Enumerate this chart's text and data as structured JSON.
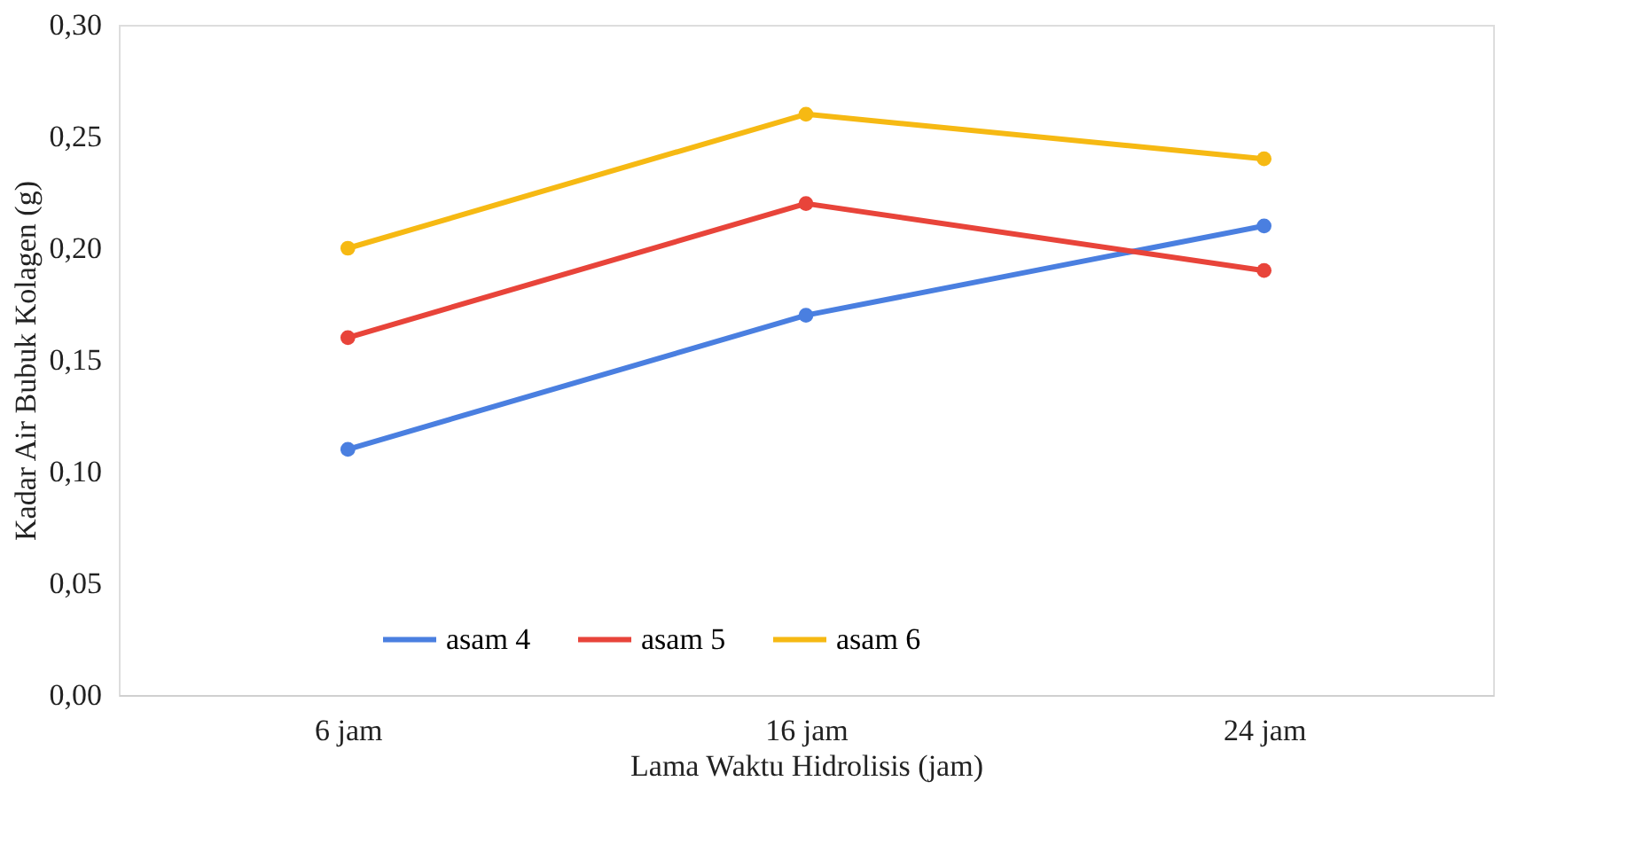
{
  "chart_data": {
    "type": "line",
    "xlabel": "Lama Waktu Hidrolisis (jam)",
    "ylabel": "Kadar Air Bubuk Kolagen (g)",
    "categories": [
      "6 jam",
      "16 jam",
      "24 jam"
    ],
    "series": [
      {
        "name": "asam 4",
        "color": "#4a7fe0",
        "values": [
          0.11,
          0.17,
          0.21
        ]
      },
      {
        "name": "asam 5",
        "color": "#e8443a",
        "values": [
          0.16,
          0.22,
          0.19
        ]
      },
      {
        "name": "asam 6",
        "color": "#f6b913",
        "values": [
          0.2,
          0.26,
          0.24
        ]
      }
    ],
    "ylim": [
      0,
      0.3
    ],
    "yticks": [
      {
        "value": 0,
        "label": "0,00"
      },
      {
        "value": 0.05,
        "label": "0,05"
      },
      {
        "value": 0.1,
        "label": "0,10"
      },
      {
        "value": 0.15,
        "label": "0,15"
      },
      {
        "value": 0.2,
        "label": "0,20"
      },
      {
        "value": 0.25,
        "label": "0,25"
      },
      {
        "value": 0.3,
        "label": "0,30"
      }
    ],
    "legend": "bottom",
    "grid": false,
    "marker": "circle",
    "line_style": "solid"
  }
}
